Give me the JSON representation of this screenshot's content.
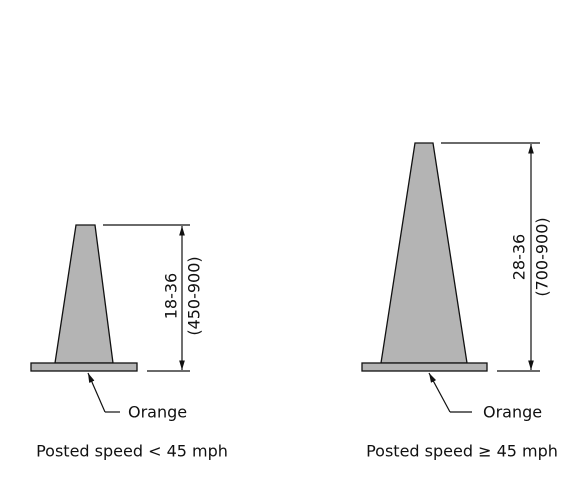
{
  "cones": [
    {
      "height_in": "18-36",
      "height_mm": "(450-900)",
      "color_label": "Orange",
      "caption": "Posted speed < 45 mph"
    },
    {
      "height_in": "28-36",
      "height_mm": "(700-900)",
      "color_label": "Orange",
      "caption": "Posted speed ≥ 45 mph"
    }
  ]
}
